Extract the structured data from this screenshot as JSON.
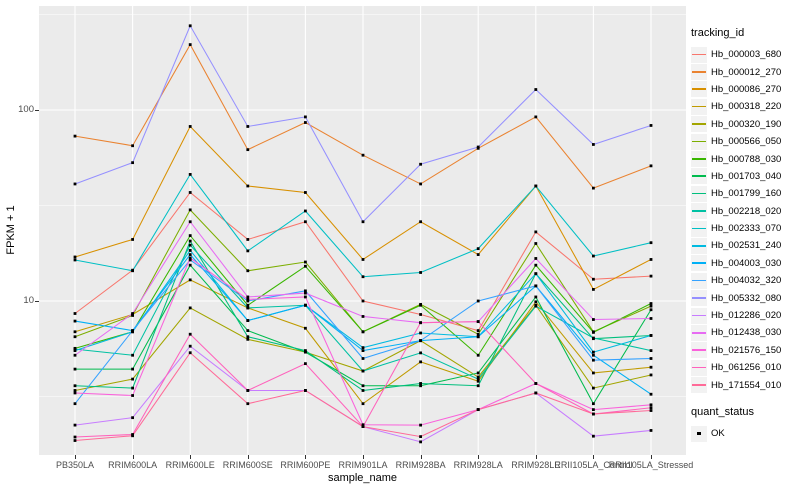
{
  "axes": {
    "x": {
      "title": "sample_name"
    },
    "y": {
      "title": "FPKM + 1",
      "scale": "log10",
      "major_ticks": [
        {
          "label": "100",
          "value": 100
        },
        {
          "label": "10",
          "value": 10
        }
      ],
      "minor_gridline_values": [
        316.23,
        31.62,
        3.162
      ]
    }
  },
  "legend": {
    "title": "tracking_id"
  },
  "legend2": {
    "title": "quant_status",
    "items": [
      {
        "label": "OK",
        "symbol": "black-square"
      }
    ]
  },
  "panel": {
    "background": "#EBEBEB",
    "gridline_color": "#FFFFFF"
  },
  "chart_data": {
    "type": "line",
    "title": "",
    "xlabel": "sample_name",
    "ylabel": "FPKM + 1",
    "yscale": "log10",
    "ylim": [
      1.5,
      350
    ],
    "grid": "on",
    "legend_position": "right",
    "point_marker": "small-black-square",
    "categories": [
      "PB350LA",
      "RRIM600LA",
      "RRIM600LE",
      "RRIM600SE",
      "RRIM600PE",
      "RRIM901LA",
      "RRIM928BA",
      "RRIM928LA",
      "RRIM928LE",
      "RRII105LA_Control",
      "RRII105LA_Stressed"
    ],
    "series": [
      {
        "name": "Hb_000003_680",
        "color": "#F8766D",
        "values": [
          8.6,
          14.5,
          37,
          21,
          26,
          10,
          8.5,
          7.0,
          23,
          13,
          13.5
        ]
      },
      {
        "name": "Hb_000012_270",
        "color": "#EA8331",
        "values": [
          73,
          65,
          220,
          62,
          86,
          58,
          41,
          63,
          92,
          39,
          51
        ]
      },
      {
        "name": "Hb_000086_270",
        "color": "#D89000",
        "values": [
          17,
          21,
          82,
          40,
          37,
          16.5,
          26,
          17.5,
          40,
          11.5,
          16.5
        ]
      },
      {
        "name": "Hb_000318_220",
        "color": "#C09B00",
        "values": [
          6.9,
          8.5,
          12.9,
          9.2,
          7.2,
          2.9,
          4.8,
          3.8,
          9.9,
          4.2,
          4.5
        ]
      },
      {
        "name": "Hb_000320_190",
        "color": "#A3A500",
        "values": [
          3.4,
          3.9,
          9.2,
          6.3,
          5.4,
          4.3,
          6.2,
          4.0,
          9.5,
          3.5,
          4.1
        ]
      },
      {
        "name": "Hb_000566_050",
        "color": "#7CAE00",
        "values": [
          6.5,
          8.4,
          30,
          14.4,
          16,
          6.9,
          9.6,
          6.7,
          20,
          6.9,
          9.4
        ]
      },
      {
        "name": "Hb_000788_030",
        "color": "#39B600",
        "values": [
          5.65,
          6.9,
          22,
          9.5,
          15.2,
          6.9,
          9.5,
          5.2,
          15.4,
          6.85,
          9.7
        ]
      },
      {
        "name": "Hb_001703_040",
        "color": "#00BB4E",
        "values": [
          4.4,
          4.4,
          15.4,
          7.0,
          5.4,
          3.6,
          3.6,
          4.2,
          10.5,
          2.9,
          9.0
        ]
      },
      {
        "name": "Hb_001799_160",
        "color": "#00BF7D",
        "values": [
          3.6,
          3.5,
          20.6,
          6.5,
          5.5,
          3.4,
          3.7,
          3.6,
          13.9,
          6.35,
          6.6
        ]
      },
      {
        "name": "Hb_002218_020",
        "color": "#00C1A3",
        "values": [
          5.6,
          5.2,
          19.6,
          9.2,
          9.5,
          4.3,
          5.35,
          3.9,
          9.4,
          6.4,
          5.5
        ]
      },
      {
        "name": "Hb_002333_070",
        "color": "#00BFC4",
        "values": [
          16.4,
          14.4,
          46,
          18.3,
          29.6,
          13.4,
          14.1,
          18.8,
          40,
          17.2,
          20.2
        ]
      },
      {
        "name": "Hb_002531_240",
        "color": "#00BAE0",
        "values": [
          5.5,
          6.9,
          18.4,
          7.9,
          9.5,
          5.7,
          6.8,
          6.5,
          13.9,
          5.4,
          6.6
        ]
      },
      {
        "name": "Hb_004003_030",
        "color": "#00B0F6",
        "values": [
          7.85,
          7.0,
          17.5,
          7.9,
          9.5,
          5.5,
          6.2,
          6.5,
          12.0,
          5.2,
          3.25
        ]
      },
      {
        "name": "Hb_004032_320",
        "color": "#35A2FF",
        "values": [
          2.9,
          7.0,
          16.4,
          10.0,
          11.3,
          5.0,
          6.2,
          10.0,
          12.0,
          4.9,
          5.0
        ]
      },
      {
        "name": "Hb_005332_080",
        "color": "#9590FF",
        "values": [
          41,
          53,
          276,
          82,
          92,
          26,
          52,
          64,
          128,
          66,
          83
        ]
      },
      {
        "name": "Hb_012286_020",
        "color": "#C77CFF",
        "values": [
          2.24,
          2.45,
          5.8,
          3.4,
          3.4,
          2.2,
          1.83,
          2.7,
          3.3,
          1.96,
          2.1
        ]
      },
      {
        "name": "Hb_012438_030",
        "color": "#E76BF3",
        "values": [
          5.2,
          8.6,
          26,
          10.5,
          11.0,
          8.3,
          7.7,
          7.8,
          16.7,
          8.0,
          8.1
        ]
      },
      {
        "name": "Hb_021576_150",
        "color": "#FA62DB",
        "values": [
          3.3,
          3.2,
          16.8,
          10.2,
          10.5,
          2.25,
          2.24,
          2.7,
          3.7,
          2.7,
          2.86
        ]
      },
      {
        "name": "Hb_061256_010",
        "color": "#FF62BC",
        "values": [
          1.94,
          2.0,
          6.7,
          3.4,
          4.7,
          2.2,
          7.7,
          7.8,
          3.7,
          2.56,
          2.76
        ]
      },
      {
        "name": "Hb_171554_010",
        "color": "#FF6A98",
        "values": [
          1.86,
          1.97,
          5.36,
          2.9,
          3.4,
          2.2,
          1.95,
          2.7,
          3.3,
          2.56,
          2.67
        ]
      }
    ]
  }
}
